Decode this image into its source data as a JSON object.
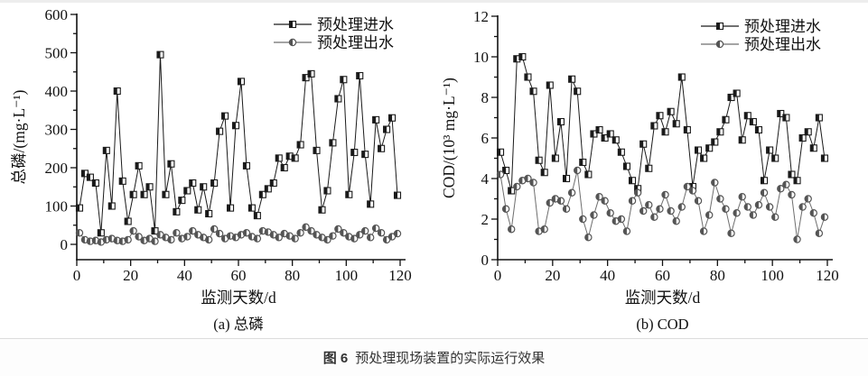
{
  "figure": {
    "caption_label": "图 6",
    "caption_text": "预处理现场装置的实际运行效果"
  },
  "chart_data": [
    {
      "type": "line",
      "title": "(a) 总磷",
      "xlabel": "监测天数/d",
      "ylabel": "总磷/(mg·L⁻¹)",
      "xlim": [
        0,
        120
      ],
      "ylim": [
        0,
        600
      ],
      "xticks": [
        0,
        20,
        40,
        60,
        80,
        100,
        120
      ],
      "yticks": [
        0,
        100,
        200,
        300,
        400,
        500,
        600
      ],
      "x_minor_step": 10,
      "y_minor_step": 50,
      "y_axis_min": -40,
      "grid": false,
      "legend_position": "top-right",
      "x": [
        1,
        3,
        5,
        7,
        9,
        11,
        13,
        15,
        17,
        19,
        21,
        23,
        25,
        27,
        29,
        31,
        33,
        35,
        37,
        39,
        41,
        43,
        45,
        47,
        49,
        51,
        53,
        55,
        57,
        59,
        61,
        63,
        65,
        67,
        69,
        71,
        73,
        75,
        77,
        79,
        81,
        83,
        85,
        87,
        89,
        91,
        93,
        95,
        97,
        99,
        101,
        103,
        105,
        107,
        109,
        111,
        113,
        115,
        117,
        119
      ],
      "series": [
        {
          "name": "预处理进水",
          "marker": "half-square",
          "line_color": "#1a1a1a",
          "marker_color": "#1a1a1a",
          "values": [
            95,
            185,
            175,
            160,
            30,
            245,
            100,
            400,
            165,
            60,
            130,
            205,
            130,
            150,
            35,
            495,
            130,
            210,
            85,
            115,
            140,
            160,
            90,
            150,
            80,
            160,
            295,
            335,
            95,
            310,
            425,
            205,
            95,
            75,
            130,
            145,
            160,
            225,
            200,
            230,
            225,
            260,
            435,
            445,
            245,
            90,
            140,
            265,
            380,
            430,
            130,
            240,
            440,
            235,
            105,
            325,
            250,
            300,
            330,
            128
          ]
        },
        {
          "name": "预处理出水",
          "marker": "half-circle",
          "line_color": "#6e6e6e",
          "marker_color": "#555555",
          "values": [
            30,
            12,
            8,
            10,
            6,
            12,
            15,
            10,
            8,
            12,
            35,
            20,
            10,
            15,
            8,
            25,
            18,
            12,
            30,
            15,
            20,
            35,
            25,
            18,
            12,
            40,
            28,
            15,
            22,
            18,
            25,
            30,
            20,
            15,
            35,
            32,
            25,
            18,
            28,
            22,
            15,
            30,
            45,
            35,
            25,
            18,
            12,
            22,
            40,
            30,
            20,
            15,
            25,
            35,
            18,
            42,
            30,
            12,
            20,
            28
          ]
        }
      ]
    },
    {
      "type": "line",
      "title": "(b) COD",
      "xlabel": "监测天数/d",
      "ylabel": "COD/(10³ mg·L⁻¹)",
      "xlim": [
        0,
        120
      ],
      "ylim": [
        0,
        12
      ],
      "xticks": [
        0,
        20,
        40,
        60,
        80,
        100,
        120
      ],
      "yticks": [
        0,
        2,
        4,
        6,
        8,
        10,
        12
      ],
      "x_minor_step": 10,
      "y_minor_step": 1,
      "y_axis_min": 0,
      "grid": false,
      "legend_position": "top-right",
      "x": [
        1,
        3,
        5,
        7,
        9,
        11,
        13,
        15,
        17,
        19,
        21,
        23,
        25,
        27,
        29,
        31,
        33,
        35,
        37,
        39,
        41,
        43,
        45,
        47,
        49,
        51,
        53,
        55,
        57,
        59,
        61,
        63,
        65,
        67,
        69,
        71,
        73,
        75,
        77,
        79,
        81,
        83,
        85,
        87,
        89,
        91,
        93,
        95,
        97,
        99,
        101,
        103,
        105,
        107,
        109,
        111,
        113,
        115,
        117,
        119
      ],
      "series": [
        {
          "name": "预处理进水",
          "marker": "half-square",
          "line_color": "#1a1a1a",
          "marker_color": "#1a1a1a",
          "values": [
            5.3,
            4.4,
            3.4,
            9.9,
            10.0,
            9.0,
            8.3,
            4.9,
            4.3,
            8.6,
            5.0,
            6.8,
            4.0,
            8.9,
            8.3,
            4.8,
            4.2,
            6.2,
            6.4,
            6.0,
            6.2,
            5.9,
            5.3,
            4.6,
            3.9,
            3.5,
            5.7,
            4.5,
            6.6,
            7.1,
            6.3,
            7.3,
            6.7,
            9.0,
            6.4,
            3.6,
            5.4,
            5.0,
            5.5,
            5.8,
            6.3,
            6.9,
            8.0,
            8.2,
            5.9,
            7.1,
            6.8,
            6.4,
            3.9,
            5.4,
            5.0,
            7.2,
            7.0,
            4.2,
            3.9,
            6.0,
            6.3,
            5.5,
            7.0,
            5.0
          ]
        },
        {
          "name": "预处理出水",
          "marker": "half-circle",
          "line_color": "#6e6e6e",
          "marker_color": "#555555",
          "values": [
            4.2,
            2.5,
            1.5,
            3.6,
            3.9,
            4.0,
            3.8,
            1.4,
            1.5,
            2.8,
            3.0,
            2.9,
            2.5,
            3.3,
            4.4,
            2.0,
            1.1,
            2.2,
            3.1,
            2.9,
            2.3,
            1.9,
            2.0,
            1.4,
            2.9,
            3.3,
            2.4,
            2.7,
            2.1,
            2.5,
            3.2,
            2.4,
            1.9,
            2.6,
            3.6,
            3.4,
            2.9,
            1.4,
            2.2,
            3.8,
            3.0,
            2.5,
            1.3,
            2.3,
            3.1,
            2.6,
            2.2,
            2.7,
            3.3,
            2.6,
            2.1,
            3.5,
            3.7,
            3.2,
            1.0,
            2.6,
            3.0,
            2.3,
            1.3,
            2.1
          ]
        }
      ]
    }
  ]
}
